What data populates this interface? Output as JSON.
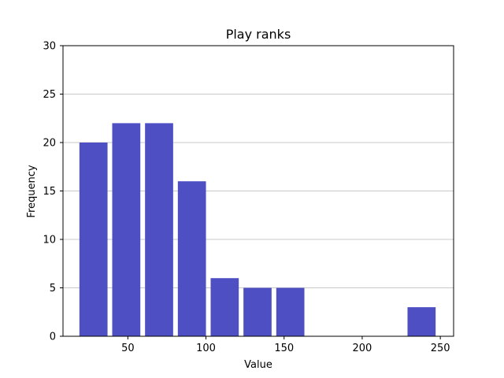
{
  "chart_data": {
    "type": "bar",
    "title": "Play ranks",
    "xlabel": "Value",
    "ylabel": "Frequency",
    "xlim": [
      8.5,
      258.5
    ],
    "ylim": [
      0,
      30
    ],
    "xticks": [
      50,
      100,
      150,
      200,
      250
    ],
    "yticks": [
      0,
      5,
      10,
      15,
      20,
      25,
      30
    ],
    "grid": "y",
    "bar_color": "#4f4fc4",
    "grid_color": "#c8c8c8",
    "bins": [
      {
        "start": 19,
        "end": 37,
        "value": 20
      },
      {
        "start": 40,
        "end": 58,
        "value": 22
      },
      {
        "start": 61,
        "end": 79,
        "value": 22
      },
      {
        "start": 82,
        "end": 100,
        "value": 16
      },
      {
        "start": 103,
        "end": 121,
        "value": 6
      },
      {
        "start": 124,
        "end": 142,
        "value": 5
      },
      {
        "start": 145,
        "end": 163,
        "value": 5
      },
      {
        "start": 229,
        "end": 247,
        "value": 3
      }
    ]
  }
}
